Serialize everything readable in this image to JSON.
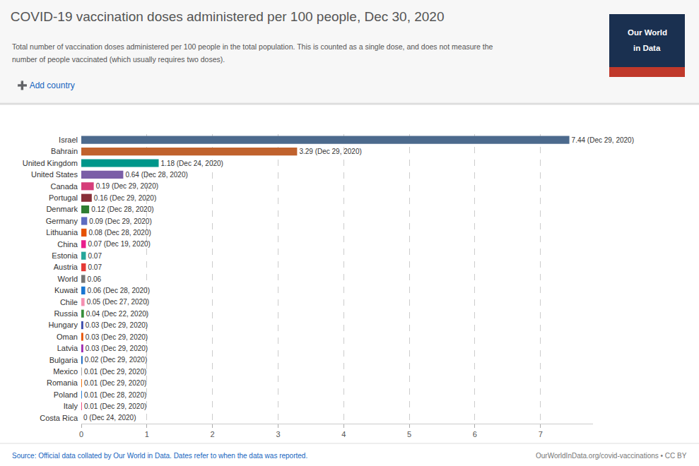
{
  "chart_data": {
    "type": "bar",
    "orientation": "horizontal",
    "title": "COVID-19 vaccination doses administered per 100 people, Dec 30, 2020",
    "subtitle": [
      "Total number of vaccination doses administered per 100 people in the total population. This is counted as a single dose, and does not measure the",
      "number of people vaccinated (which usually requires two doses)."
    ],
    "annotations": [
      "➕ Add country",
      "Our World",
      "in Data",
      "Source: Official data collated by Our World in Data. Dates refer to when the data was reported.",
      "OurWorldInData.org/covid-vaccinations • CC BY"
    ],
    "categories": [
      "Israel",
      "Bahrain",
      "United Kingdom",
      "United States",
      "Canada",
      "Portugal",
      "Denmark",
      "Germany",
      "Lithuania",
      "China",
      "Estonia",
      "Austria",
      "World",
      "Kuwait",
      "Chile",
      "Russia",
      "Hungary",
      "Oman",
      "Latvia",
      "Bulgaria",
      "Mexico",
      "Romania",
      "Poland",
      "Italy",
      "Costa Rica"
    ],
    "values": [
      7.44,
      3.29,
      1.18,
      0.64,
      0.19,
      0.16,
      0.12,
      0.09,
      0.08,
      0.07,
      0.07,
      0.07,
      0.06,
      0.06,
      0.05,
      0.04,
      0.03,
      0.03,
      0.03,
      0.02,
      0.01,
      0.01,
      0.01,
      0.01,
      0.0
    ],
    "value_labels": [
      "7.44 (Dec 29, 2020)",
      "3.29 (Dec 29, 2020)",
      "1.18 (Dec 24, 2020)",
      "0.64 (Dec 28, 2020)",
      "0.19 (Dec 29, 2020)",
      "0.16 (Dec 29, 2020)",
      "0.12 (Dec 28, 2020)",
      "0.09 (Dec 29, 2020)",
      "0.08 (Dec 28, 2020)",
      "0.07 (Dec 19, 2020)",
      "0.07",
      "0.07",
      "0.06",
      "0.06 (Dec 28, 2020)",
      "0.05 (Dec 27, 2020)",
      "0.04 (Dec 22, 2020)",
      "0.03 (Dec 29, 2020)",
      "0.03 (Dec 29, 2020)",
      "0.03 (Dec 29, 2020)",
      "0.02 (Dec 29, 2020)",
      "0.01 (Dec 29, 2020)",
      "0.01 (Dec 29, 2020)",
      "0.01 (Dec 28, 2020)",
      "0.01 (Dec 29, 2020)",
      "0 (Dec 24, 2020)"
    ],
    "data_labels": true,
    "colors": [
      "#4c6a8d",
      "#c0622d",
      "#00968a",
      "#7b5ea7",
      "#d63e7a",
      "#883039",
      "#2e7d32",
      "#5c6bc0",
      "#e65100",
      "#e91e8c",
      "#26a69a",
      "#e53935",
      "#757575",
      "#1976d2",
      "#f48fb1",
      "#388e3c",
      "#3949ab",
      "#e65100",
      "#9c27b0",
      "#1565c0",
      "#9e9e9e",
      "#ef6c00",
      "#1976d2",
      "#ec407a",
      "#bdbdbd"
    ],
    "xlim": [
      0,
      7.8
    ],
    "xticks": [
      0,
      1,
      2,
      3,
      4,
      5,
      6,
      7
    ],
    "grid": true
  }
}
